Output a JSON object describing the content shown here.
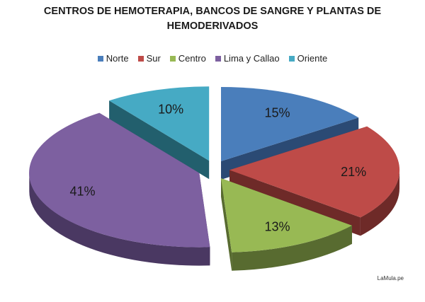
{
  "chart_data": {
    "type": "pie",
    "title_line1": "CENTROS DE HEMOTERAPIA, BANCOS DE SANGRE Y PLANTAS DE",
    "title_line2": "HEMODERIVADOS",
    "legend_position": "top",
    "style": "3d-exploded",
    "categories": [
      "Norte",
      "Sur",
      "Centro",
      "Lima y Callao",
      "Oriente"
    ],
    "values": [
      15,
      21,
      13,
      41,
      10
    ],
    "data_labels": [
      "15%",
      "21%",
      "13%",
      "41%",
      "10%"
    ],
    "colors": [
      "#4a7ebb",
      "#be4b48",
      "#98b954",
      "#7d60a0",
      "#46aac4"
    ],
    "side_colors": [
      "#2b4a74",
      "#6e2a28",
      "#586b30",
      "#4a3862",
      "#225f6d"
    ]
  },
  "credit": "LaMula.pe"
}
